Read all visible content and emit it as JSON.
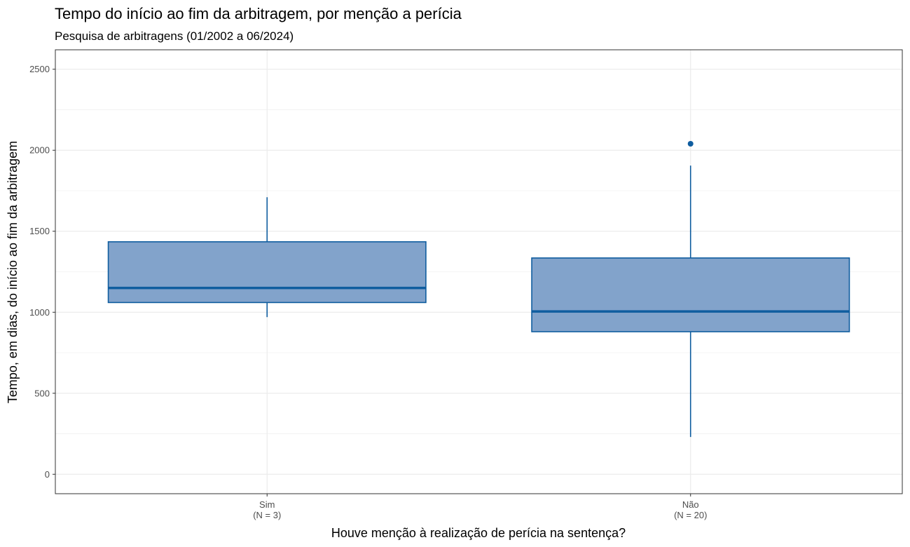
{
  "chart_data": {
    "type": "boxplot",
    "title": "Tempo do início ao fim da arbitragem, por menção a perícia",
    "subtitle": "Pesquisa de arbitragens (01/2002 a 06/2024)",
    "xlabel": "Houve menção à realização de perícia na sentença?",
    "ylabel": "Tempo, em dias, do início ao fim da arbitragem",
    "ylim": [
      -120,
      2620
    ],
    "yticks": [
      0,
      500,
      1000,
      1500,
      2000,
      2500
    ],
    "ytick_labels": [
      "0",
      "500",
      "1000",
      "1500",
      "2000",
      "2500"
    ],
    "grid": true,
    "colors": {
      "fill": "#82a3cb",
      "stroke": "#0f5d9f",
      "grid": "#ebebeb",
      "panel_border": "#333333"
    },
    "categories": [
      {
        "label": "Sim",
        "sublabel": "(N = 3)",
        "min": 970,
        "q1": 1060,
        "median": 1150,
        "q3": 1435,
        "max": 1710,
        "outliers": []
      },
      {
        "label": "Não",
        "sublabel": "(N = 20)",
        "min": 230,
        "q1": 880,
        "median": 1005,
        "q3": 1335,
        "max": 1905,
        "outliers": [
          2040
        ]
      }
    ]
  }
}
